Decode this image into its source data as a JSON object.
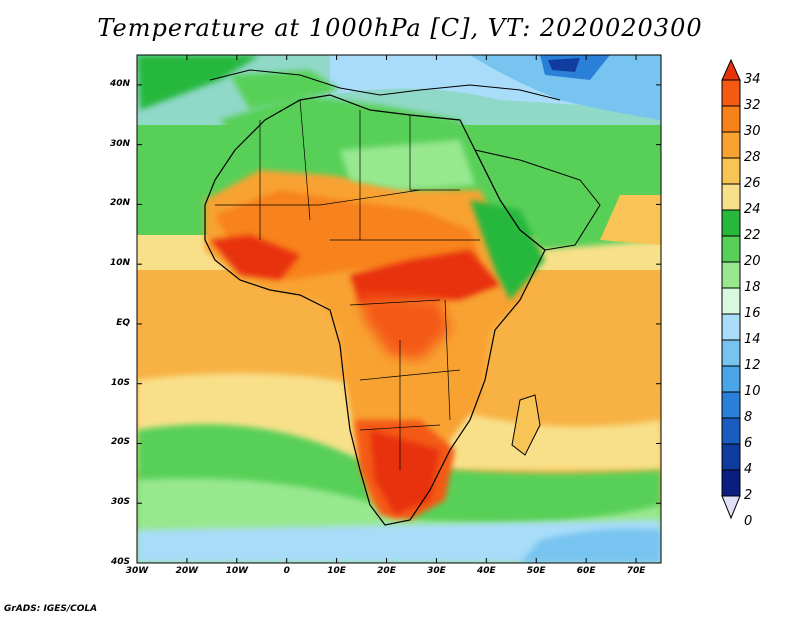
{
  "title": "Temperature at 1000hPa [C], VT: 2020020300",
  "credit": "GrADS: IGES/COLA",
  "map": {
    "region": "Africa",
    "lat_ticks": [
      "40N",
      "30N",
      "20N",
      "10N",
      "EQ",
      "10S",
      "20S",
      "30S",
      "40S"
    ],
    "lat_values": [
      40,
      30,
      20,
      10,
      0,
      -10,
      -20,
      -30,
      -40
    ],
    "lon_ticks": [
      "30W",
      "20W",
      "10W",
      "0",
      "10E",
      "20E",
      "30E",
      "40E",
      "50E",
      "60E",
      "70E"
    ],
    "lon_values": [
      -30,
      -20,
      -10,
      0,
      10,
      20,
      30,
      40,
      50,
      60,
      70
    ],
    "lat_range": [
      -40,
      45
    ],
    "lon_range": [
      -30,
      75
    ]
  },
  "colorbar": {
    "labels": [
      "34",
      "32",
      "30",
      "28",
      "26",
      "24",
      "22",
      "20",
      "18",
      "16",
      "14",
      "12",
      "10",
      "8",
      "6",
      "4",
      "2",
      "0"
    ],
    "values": [
      34,
      32,
      30,
      28,
      26,
      24,
      22,
      20,
      18,
      16,
      14,
      12,
      10,
      8,
      6,
      4,
      2,
      0
    ],
    "colors": [
      "#e8330a",
      "#f45a12",
      "#f8821a",
      "#f8a232",
      "#f8c455",
      "#f8e08a",
      "#28b83c",
      "#58d058",
      "#98e890",
      "#d8f8e0",
      "#a8dcf8",
      "#78c4f0",
      "#4aa4e8",
      "#2a80d8",
      "#1a5cc0",
      "#103ca0",
      "#0a1e80",
      "#e0e0f8"
    ]
  }
}
